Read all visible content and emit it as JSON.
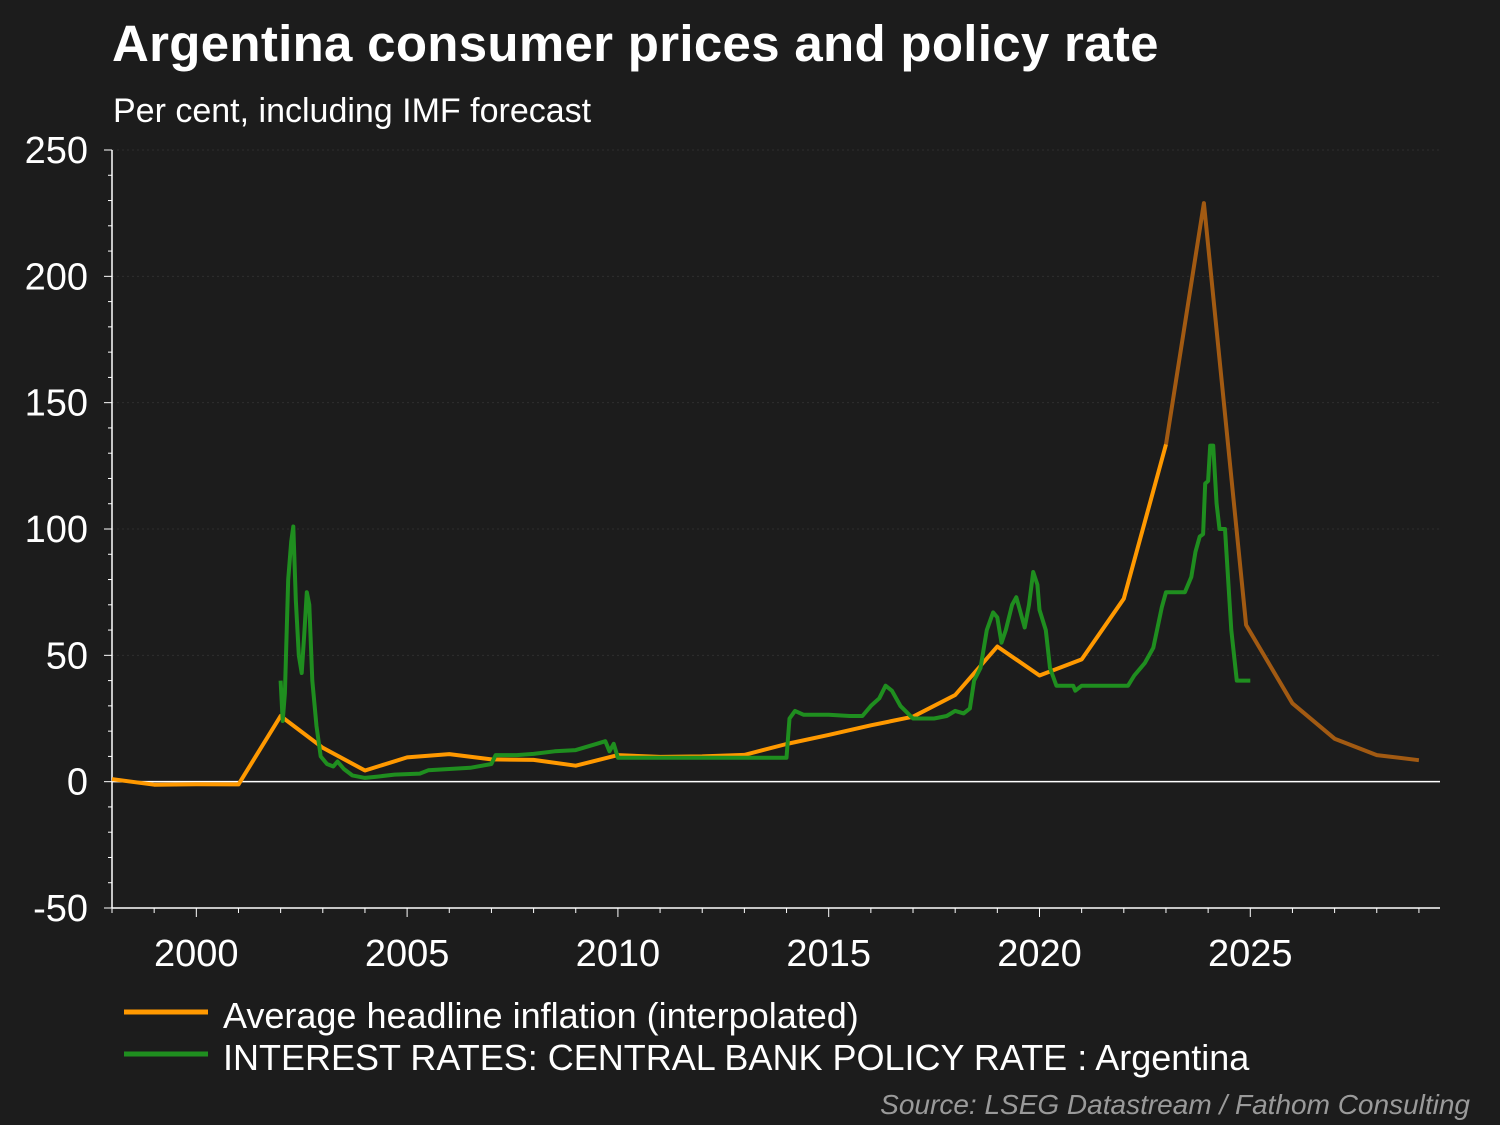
{
  "chart_data": {
    "type": "line",
    "title": "Argentina consumer prices and policy rate",
    "subtitle": "Per cent, including IMF forecast",
    "source": "Source: LSEG Datastream / Fathom Consulting",
    "xlim": [
      1998,
      2029.5
    ],
    "ylim": [
      -50,
      250
    ],
    "x_ticks": [
      2000,
      2005,
      2010,
      2015,
      2020,
      2025
    ],
    "y_ticks": [
      250,
      200,
      150,
      100,
      50,
      0,
      -50
    ],
    "grid": true,
    "legend_position": "bottom-left",
    "series": [
      {
        "name": "Average headline inflation (interpolated)",
        "color": "#ff9900",
        "forecast_color": "#a25a12",
        "forecast_from": 2023,
        "points": [
          [
            1998,
            1.0
          ],
          [
            1999,
            -1.2
          ],
          [
            2000,
            -1.0
          ],
          [
            2001,
            -1.1
          ],
          [
            2002,
            26.0
          ],
          [
            2003,
            13.4
          ],
          [
            2004,
            4.4
          ],
          [
            2005,
            9.6
          ],
          [
            2006,
            10.9
          ],
          [
            2007,
            8.8
          ],
          [
            2008,
            8.6
          ],
          [
            2009,
            6.3
          ],
          [
            2010,
            10.5
          ],
          [
            2011,
            9.8
          ],
          [
            2012,
            10.0
          ],
          [
            2013,
            10.6
          ],
          [
            2014,
            14.9
          ],
          [
            2015,
            18.5
          ],
          [
            2016,
            22.3
          ],
          [
            2017,
            25.7
          ],
          [
            2018,
            34.3
          ],
          [
            2019,
            53.5
          ],
          [
            2020,
            42.0
          ],
          [
            2021,
            48.4
          ],
          [
            2022,
            72.4
          ],
          [
            2023,
            133.5
          ],
          [
            2023.9,
            229.0
          ],
          [
            2024.9,
            62.0
          ],
          [
            2026,
            31.0
          ],
          [
            2027,
            17.0
          ],
          [
            2028,
            10.5
          ],
          [
            2029,
            8.5
          ]
        ]
      },
      {
        "name": "INTEREST RATES: CENTRAL BANK POLICY RATE : Argentina",
        "color": "#1f8e1f",
        "points": [
          [
            2002.0,
            40
          ],
          [
            2002.05,
            24
          ],
          [
            2002.1,
            35
          ],
          [
            2002.18,
            80
          ],
          [
            2002.25,
            95
          ],
          [
            2002.3,
            101
          ],
          [
            2002.36,
            72
          ],
          [
            2002.43,
            50
          ],
          [
            2002.5,
            43
          ],
          [
            2002.56,
            58
          ],
          [
            2002.62,
            75
          ],
          [
            2002.68,
            70
          ],
          [
            2002.75,
            40
          ],
          [
            2002.85,
            22
          ],
          [
            2002.95,
            10
          ],
          [
            2003.1,
            7
          ],
          [
            2003.25,
            6
          ],
          [
            2003.35,
            8
          ],
          [
            2003.5,
            5
          ],
          [
            2003.7,
            2.5
          ],
          [
            2004.0,
            1.5
          ],
          [
            2004.3,
            2.0
          ],
          [
            2004.7,
            2.8
          ],
          [
            2005.0,
            3
          ],
          [
            2005.3,
            3.2
          ],
          [
            2005.5,
            4.5
          ],
          [
            2006.0,
            5
          ],
          [
            2006.5,
            5.5
          ],
          [
            2007.0,
            7
          ],
          [
            2007.1,
            10.5
          ],
          [
            2007.6,
            10.5
          ],
          [
            2008.0,
            11
          ],
          [
            2008.5,
            12
          ],
          [
            2009.0,
            12.5
          ],
          [
            2009.5,
            15
          ],
          [
            2009.7,
            16
          ],
          [
            2009.8,
            12
          ],
          [
            2009.9,
            15
          ],
          [
            2010.0,
            9.5
          ],
          [
            2011.0,
            9.5
          ],
          [
            2012.0,
            9.5
          ],
          [
            2013.0,
            9.5
          ],
          [
            2014.0,
            9.5
          ],
          [
            2014.07,
            25
          ],
          [
            2014.2,
            28
          ],
          [
            2014.4,
            26.5
          ],
          [
            2015.0,
            26.5
          ],
          [
            2015.5,
            26
          ],
          [
            2015.8,
            26
          ],
          [
            2016.0,
            30
          ],
          [
            2016.2,
            33
          ],
          [
            2016.35,
            38
          ],
          [
            2016.5,
            36
          ],
          [
            2016.7,
            30
          ],
          [
            2017.0,
            25
          ],
          [
            2017.5,
            25
          ],
          [
            2017.8,
            26
          ],
          [
            2018.0,
            28
          ],
          [
            2018.2,
            27
          ],
          [
            2018.35,
            29
          ],
          [
            2018.45,
            40
          ],
          [
            2018.6,
            45
          ],
          [
            2018.75,
            60
          ],
          [
            2018.9,
            67
          ],
          [
            2019.0,
            65
          ],
          [
            2019.1,
            55
          ],
          [
            2019.2,
            60
          ],
          [
            2019.35,
            70
          ],
          [
            2019.45,
            73
          ],
          [
            2019.55,
            67
          ],
          [
            2019.65,
            61
          ],
          [
            2019.75,
            70
          ],
          [
            2019.85,
            83
          ],
          [
            2019.95,
            78
          ],
          [
            2020.0,
            68
          ],
          [
            2020.15,
            60
          ],
          [
            2020.25,
            45
          ],
          [
            2020.4,
            38
          ],
          [
            2020.8,
            38
          ],
          [
            2020.85,
            36
          ],
          [
            2021.0,
            38
          ],
          [
            2021.5,
            38
          ],
          [
            2022.0,
            38
          ],
          [
            2022.1,
            38
          ],
          [
            2022.25,
            42
          ],
          [
            2022.5,
            47
          ],
          [
            2022.7,
            53
          ],
          [
            2022.9,
            69
          ],
          [
            2023.0,
            75
          ],
          [
            2023.2,
            75
          ],
          [
            2023.45,
            75
          ],
          [
            2023.6,
            81
          ],
          [
            2023.7,
            91
          ],
          [
            2023.8,
            97
          ],
          [
            2023.88,
            98
          ],
          [
            2023.93,
            118
          ],
          [
            2024.0,
            119
          ],
          [
            2024.05,
            133
          ],
          [
            2024.12,
            133
          ],
          [
            2024.2,
            110
          ],
          [
            2024.27,
            100
          ],
          [
            2024.4,
            100
          ],
          [
            2024.55,
            60
          ],
          [
            2024.68,
            40
          ],
          [
            2024.8,
            40
          ],
          [
            2025.0,
            40
          ]
        ]
      }
    ]
  }
}
